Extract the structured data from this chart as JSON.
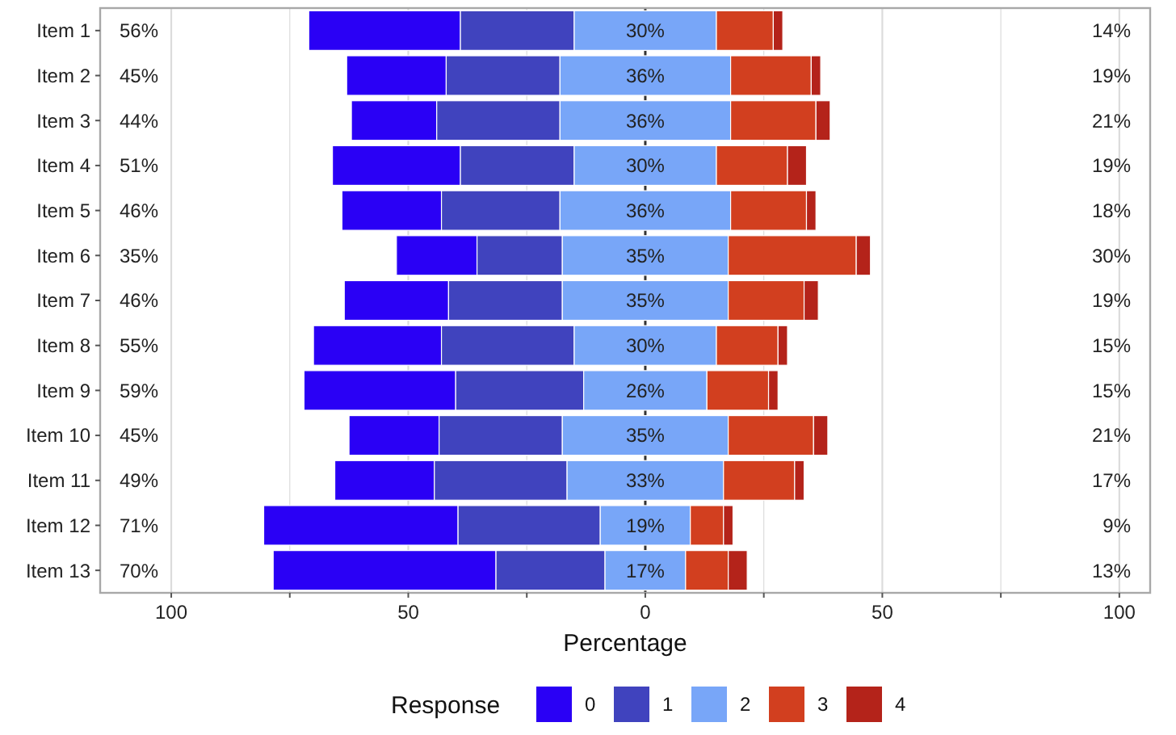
{
  "chart_data": {
    "type": "bar",
    "orientation": "horizontal",
    "xlabel": "Percentage",
    "legend_title": "Response",
    "legend": "bottom",
    "grid": "x",
    "categories": [
      "Item 1",
      "Item 2",
      "Item 3",
      "Item 4",
      "Item 5",
      "Item 6",
      "Item 7",
      "Item 8",
      "Item 9",
      "Item 10",
      "Item 11",
      "Item 12",
      "Item 13"
    ],
    "series": [
      {
        "name": "0",
        "color": "#2a00f5",
        "values": [
          32,
          21,
          18,
          27,
          21,
          17,
          22,
          27,
          32,
          19,
          21,
          41,
          47
        ],
        "base": [
          -71,
          -63,
          -62,
          -66,
          -64,
          -52.5,
          -63.5,
          -70,
          -72,
          -62.5,
          -65.5,
          -80.5,
          -78.5
        ]
      },
      {
        "name": "1",
        "color": "#4043be",
        "values": [
          24,
          24,
          26,
          24,
          25,
          18,
          24,
          28,
          27,
          26,
          28,
          30,
          23
        ],
        "base": [
          -39,
          -42,
          -44,
          -39,
          -43,
          -35.5,
          -41.5,
          -43,
          -40,
          -43.5,
          -44.5,
          -39.5,
          -31.5
        ]
      },
      {
        "name": "2",
        "color": "#78a6f8",
        "values": [
          30,
          36,
          36,
          30,
          36,
          35,
          35,
          30,
          26,
          35,
          33,
          19,
          17
        ],
        "base": [
          -15,
          -18,
          -18,
          -15,
          -18,
          -17.5,
          -17.5,
          -15,
          -13,
          -17.5,
          -16.5,
          -9.5,
          -8.5
        ],
        "value_labels": [
          "30%",
          "36%",
          "36%",
          "30%",
          "36%",
          "35%",
          "35%",
          "30%",
          "26%",
          "35%",
          "33%",
          "19%",
          "17%"
        ]
      },
      {
        "name": "3",
        "color": "#d23f1f",
        "values": [
          12,
          17,
          18,
          15,
          16,
          27,
          16,
          13,
          13,
          18,
          15,
          7,
          9
        ],
        "base": [
          15,
          18,
          18,
          15,
          18,
          17.5,
          17.5,
          15,
          13,
          17.5,
          16.5,
          9.5,
          8.5
        ]
      },
      {
        "name": "4",
        "color": "#b4231a",
        "values": [
          2,
          2,
          3,
          4,
          2,
          3,
          3,
          2,
          2,
          3,
          2,
          2,
          4
        ],
        "base": [
          27,
          35,
          36,
          30,
          34,
          44.5,
          33.5,
          28,
          26,
          35.5,
          31.5,
          16.5,
          17.5
        ]
      }
    ],
    "annotations": [
      "56%",
      "45%",
      "44%",
      "51%",
      "46%",
      "35%",
      "46%",
      "55%",
      "59%",
      "45%",
      "49%",
      "71%",
      "70%",
      "14%",
      "19%",
      "21%",
      "19%",
      "18%",
      "30%",
      "19%",
      "15%",
      "15%",
      "21%",
      "17%",
      "9%",
      "13%"
    ],
    "xlim": [
      -115,
      106.5
    ],
    "xticks": [
      {
        "value": -100,
        "label": "100"
      },
      {
        "value": -75,
        "label": null
      },
      {
        "value": -50,
        "label": "50"
      },
      {
        "value": -25,
        "label": null
      },
      0,
      {
        "value": 25,
        "label": null
      },
      50,
      {
        "value": 75,
        "label": null
      },
      100
    ],
    "ref_lines": [
      {
        "axis": "x",
        "value": 0,
        "color": "#333333"
      }
    ]
  }
}
